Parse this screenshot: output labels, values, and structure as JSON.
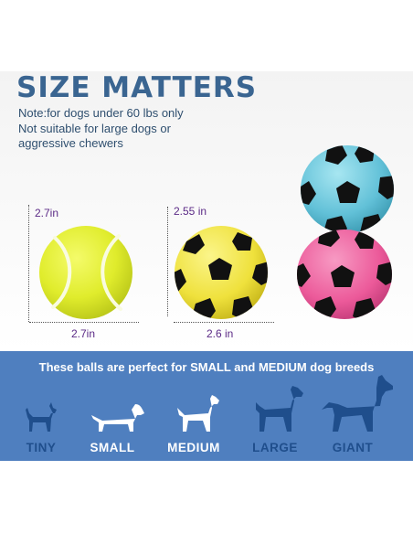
{
  "title": "SIZE MATTERS",
  "note": [
    "Note:for dogs under 60 lbs only",
    "Not suitable for large dogs or",
    "aggressive chewers"
  ],
  "tennis_ball": {
    "height_label": "2.7in",
    "width_label": "2.7in"
  },
  "soccer_ball": {
    "height_label": "2.55 in",
    "width_label": "2.6 in"
  },
  "band": {
    "text": "These balls are perfect for SMALL and MEDIUM dog breeds",
    "breeds": [
      {
        "label": "TINY",
        "icon": "tiny-dog-icon",
        "color": "#1f4e8c"
      },
      {
        "label": "SMALL",
        "icon": "dachshund-icon",
        "color": "#ffffff"
      },
      {
        "label": "MEDIUM",
        "icon": "medium-dog-icon",
        "color": "#ffffff"
      },
      {
        "label": "LARGE",
        "icon": "large-dog-icon",
        "color": "#1f4e8c"
      },
      {
        "label": "GIANT",
        "icon": "giant-dog-icon",
        "color": "#1f4e8c"
      }
    ]
  },
  "colors": {
    "title": "#3a6591",
    "measure": "#5b2a86",
    "band": "#4f7fbf",
    "tennis": "#e3ee2a",
    "yellow_ball": "#f2e640",
    "blue_ball": "#6cc7dc",
    "pink_ball": "#ef5a9c"
  }
}
